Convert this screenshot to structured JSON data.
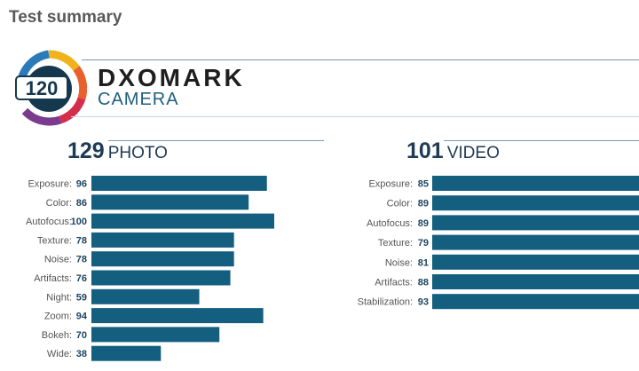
{
  "page": {
    "title": "Test summary"
  },
  "brand": {
    "score": "120",
    "name": "DXOMARK",
    "subtitle": "CAMERA",
    "colors": {
      "navy": "#15384f",
      "yellow": "#f2b21c",
      "orange": "#e8602c",
      "red": "#d52d4c",
      "purple": "#7b3b8f",
      "blue": "#2b7bb9"
    }
  },
  "chart_data": [
    {
      "type": "bar",
      "orientation": "horizontal",
      "title": "PHOTO",
      "score": "129",
      "bar_color": "#145e80",
      "xlim": [
        0,
        100
      ],
      "categories": [
        "Exposure",
        "Color",
        "Autofocus",
        "Texture",
        "Noise",
        "Artifacts",
        "Night",
        "Zoom",
        "Bokeh",
        "Wide"
      ],
      "values": [
        96,
        86,
        100,
        78,
        78,
        76,
        59,
        94,
        70,
        38
      ]
    },
    {
      "type": "bar",
      "orientation": "horizontal",
      "title": "VIDEO",
      "score": "101",
      "bar_color": "#145e80",
      "xlim": [
        0,
        100
      ],
      "categories": [
        "Exposure",
        "Color",
        "Autofocus",
        "Texture",
        "Noise",
        "Artifacts",
        "Stabilization"
      ],
      "values": [
        85,
        89,
        89,
        79,
        81,
        88,
        93
      ]
    }
  ]
}
